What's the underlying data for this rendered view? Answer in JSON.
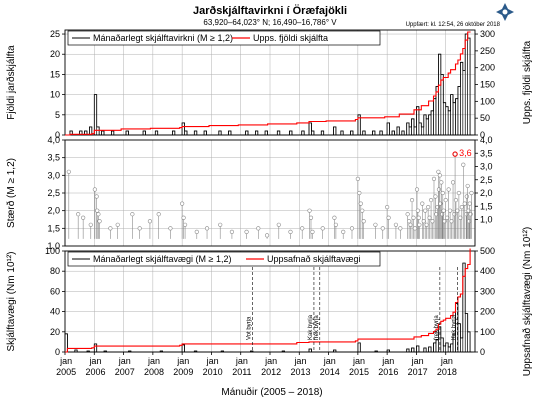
{
  "header": {
    "title": "Jarðskjálftavirkni í Öræfajökli",
    "subtitle": "63,920–64,023° N; 16,490–16,786° V",
    "updated": "Uppfært: kl. 12:54, 26 október 2018"
  },
  "colors": {
    "counts": "#000000",
    "cumulative": "#ff0000",
    "grid": "#b0b0b0",
    "stems": "#888888",
    "logo": "#2b5a8a"
  },
  "logo_icon": "snowflake-logo-icon",
  "xaxis": {
    "label": "Mánuðir (2005 – 2018)",
    "tick_top": [
      "jan",
      "jan",
      "jan",
      "jan",
      "jan",
      "jan",
      "jan",
      "jan",
      "jan",
      "jan",
      "jan",
      "jan",
      "jan",
      "jan"
    ],
    "tick_bottom": [
      "2005",
      "2006",
      "2007",
      "2008",
      "2009",
      "2010",
      "2011",
      "2012",
      "2013",
      "2014",
      "2015",
      "2016",
      "2017",
      "2018"
    ]
  },
  "chart_data": [
    {
      "type": "bar",
      "id": "monthly_counts",
      "ylabel_left": "Fjöldi jarðskjálfta",
      "ylabel_right": "Upps. fjöldi skjálfta",
      "ylim_left": [
        0,
        26
      ],
      "ylim_right": [
        0,
        312
      ],
      "yticks_left": [
        "0",
        "5",
        "10",
        "15",
        "20",
        "25"
      ],
      "yticks_right": [
        "0",
        "50",
        "100",
        "150",
        "200",
        "250",
        "300"
      ],
      "legend": {
        "monthly": "Mánaðarlegt skjálftavirkni (M ≥ 1,2)",
        "cumulative": "Upps. fjöldi skjálfta"
      },
      "monthly": [
        {
          "m": "2005-03",
          "v": 1
        },
        {
          "m": "2005-07",
          "v": 1
        },
        {
          "m": "2005-09",
          "v": 1
        },
        {
          "m": "2005-11",
          "v": 2
        },
        {
          "m": "2006-01",
          "v": 10
        },
        {
          "m": "2006-02",
          "v": 2
        },
        {
          "m": "2006-04",
          "v": 1
        },
        {
          "m": "2006-08",
          "v": 1
        },
        {
          "m": "2007-02",
          "v": 1
        },
        {
          "m": "2007-09",
          "v": 1
        },
        {
          "m": "2008-02",
          "v": 1
        },
        {
          "m": "2008-09",
          "v": 1
        },
        {
          "m": "2009-01",
          "v": 3
        },
        {
          "m": "2009-02",
          "v": 1
        },
        {
          "m": "2009-06",
          "v": 1
        },
        {
          "m": "2009-10",
          "v": 1
        },
        {
          "m": "2010-04",
          "v": 1
        },
        {
          "m": "2010-08",
          "v": 1
        },
        {
          "m": "2011-03",
          "v": 1
        },
        {
          "m": "2011-07",
          "v": 1
        },
        {
          "m": "2011-11",
          "v": 1
        },
        {
          "m": "2012-04",
          "v": 1
        },
        {
          "m": "2012-09",
          "v": 1
        },
        {
          "m": "2013-02",
          "v": 1
        },
        {
          "m": "2013-05",
          "v": 3
        },
        {
          "m": "2013-06",
          "v": 1
        },
        {
          "m": "2013-10",
          "v": 1
        },
        {
          "m": "2014-03",
          "v": 2
        },
        {
          "m": "2014-06",
          "v": 1
        },
        {
          "m": "2014-10",
          "v": 1
        },
        {
          "m": "2015-01",
          "v": 5
        },
        {
          "m": "2015-03",
          "v": 1
        },
        {
          "m": "2015-07",
          "v": 1
        },
        {
          "m": "2015-10",
          "v": 1
        },
        {
          "m": "2016-01",
          "v": 3
        },
        {
          "m": "2016-03",
          "v": 1
        },
        {
          "m": "2016-05",
          "v": 2
        },
        {
          "m": "2016-07",
          "v": 1
        },
        {
          "m": "2016-09",
          "v": 3
        },
        {
          "m": "2016-10",
          "v": 2
        },
        {
          "m": "2016-11",
          "v": 4
        },
        {
          "m": "2016-12",
          "v": 2
        },
        {
          "m": "2017-01",
          "v": 7
        },
        {
          "m": "2017-02",
          "v": 3
        },
        {
          "m": "2017-03",
          "v": 2
        },
        {
          "m": "2017-04",
          "v": 5
        },
        {
          "m": "2017-05",
          "v": 4
        },
        {
          "m": "2017-06",
          "v": 5
        },
        {
          "m": "2017-07",
          "v": 6
        },
        {
          "m": "2017-08",
          "v": 9
        },
        {
          "m": "2017-09",
          "v": 12
        },
        {
          "m": "2017-10",
          "v": 20
        },
        {
          "m": "2017-11",
          "v": 15
        },
        {
          "m": "2017-12",
          "v": 8
        },
        {
          "m": "2018-01",
          "v": 7
        },
        {
          "m": "2018-02",
          "v": 6
        },
        {
          "m": "2018-03",
          "v": 10
        },
        {
          "m": "2018-04",
          "v": 8
        },
        {
          "m": "2018-05",
          "v": 9
        },
        {
          "m": "2018-06",
          "v": 12
        },
        {
          "m": "2018-07",
          "v": 18
        },
        {
          "m": "2018-08",
          "v": 16
        },
        {
          "m": "2018-09",
          "v": 25
        },
        {
          "m": "2018-10",
          "v": 24
        }
      ],
      "cumulative": [
        [
          "2005-01",
          0
        ],
        [
          "2005-03",
          2
        ],
        [
          "2005-12",
          4
        ],
        [
          "2006-01",
          14
        ],
        [
          "2006-12",
          18
        ],
        [
          "2007-12",
          20
        ],
        [
          "2008-12",
          22
        ],
        [
          "2009-01",
          25
        ],
        [
          "2009-12",
          28
        ],
        [
          "2010-12",
          30
        ],
        [
          "2011-12",
          33
        ],
        [
          "2012-12",
          36
        ],
        [
          "2013-05",
          40
        ],
        [
          "2013-12",
          42
        ],
        [
          "2014-12",
          46
        ],
        [
          "2015-01",
          51
        ],
        [
          "2015-12",
          54
        ],
        [
          "2016-06",
          62
        ],
        [
          "2016-12",
          75
        ],
        [
          "2017-03",
          87
        ],
        [
          "2017-06",
          101
        ],
        [
          "2017-08",
          116
        ],
        [
          "2017-09",
          128
        ],
        [
          "2017-10",
          148
        ],
        [
          "2017-11",
          163
        ],
        [
          "2017-12",
          171
        ],
        [
          "2018-02",
          184
        ],
        [
          "2018-03",
          194
        ],
        [
          "2018-05",
          211
        ],
        [
          "2018-06",
          223
        ],
        [
          "2018-07",
          241
        ],
        [
          "2018-08",
          257
        ],
        [
          "2018-09",
          282
        ],
        [
          "2018-10",
          306
        ]
      ]
    },
    {
      "type": "scatter",
      "id": "magnitudes",
      "ylabel": "Stærð (M ≥ 1,2)",
      "ylim": [
        1.0,
        4.0
      ],
      "baseline": 1.2,
      "yticks_left": [
        "1,0",
        "1,5",
        "2,0",
        "2,5",
        "3,0",
        "3,5",
        "4,0"
      ],
      "yticks_right": [
        "1,0",
        "1,5",
        "2,0",
        "2,5",
        "3,0",
        "3,5",
        "4,0"
      ],
      "max_label": "3,6",
      "max_point": {
        "t": 2018.32,
        "v": 3.6
      },
      "points": [
        [
          2005.13,
          3.1
        ],
        [
          2005.45,
          1.9
        ],
        [
          2005.62,
          1.8
        ],
        [
          2005.88,
          1.6
        ],
        [
          2006.02,
          2.6
        ],
        [
          2006.08,
          2.4
        ],
        [
          2006.1,
          2.0
        ],
        [
          2006.14,
          1.9
        ],
        [
          2006.18,
          1.7
        ],
        [
          2006.55,
          1.5
        ],
        [
          2006.8,
          1.6
        ],
        [
          2007.3,
          1.9
        ],
        [
          2007.55,
          1.5
        ],
        [
          2007.9,
          1.7
        ],
        [
          2008.2,
          1.9
        ],
        [
          2008.6,
          1.5
        ],
        [
          2009.0,
          2.2
        ],
        [
          2009.05,
          1.8
        ],
        [
          2009.1,
          1.6
        ],
        [
          2009.5,
          1.4
        ],
        [
          2009.85,
          1.5
        ],
        [
          2010.3,
          1.6
        ],
        [
          2010.7,
          1.4
        ],
        [
          2011.2,
          1.4
        ],
        [
          2011.6,
          1.5
        ],
        [
          2011.9,
          1.3
        ],
        [
          2012.3,
          1.6
        ],
        [
          2012.7,
          1.4
        ],
        [
          2013.1,
          1.5
        ],
        [
          2013.35,
          2.0
        ],
        [
          2013.4,
          1.8
        ],
        [
          2013.45,
          1.4
        ],
        [
          2013.8,
          1.5
        ],
        [
          2014.2,
          1.8
        ],
        [
          2014.25,
          1.6
        ],
        [
          2014.5,
          1.4
        ],
        [
          2014.8,
          1.5
        ],
        [
          2015.0,
          2.9
        ],
        [
          2015.05,
          2.5
        ],
        [
          2015.1,
          2.2
        ],
        [
          2015.15,
          2.0
        ],
        [
          2015.2,
          1.7
        ],
        [
          2015.6,
          1.6
        ],
        [
          2015.85,
          1.5
        ],
        [
          2016.0,
          2.1
        ],
        [
          2016.05,
          1.8
        ],
        [
          2016.3,
          1.6
        ],
        [
          2016.45,
          1.5
        ],
        [
          2016.7,
          1.9
        ],
        [
          2016.75,
          1.7
        ],
        [
          2016.8,
          1.6
        ],
        [
          2016.85,
          2.3
        ],
        [
          2016.9,
          1.8
        ],
        [
          2016.95,
          1.5
        ],
        [
          2017.02,
          2.6
        ],
        [
          2017.05,
          2.0
        ],
        [
          2017.08,
          1.8
        ],
        [
          2017.1,
          1.6
        ],
        [
          2017.2,
          2.2
        ],
        [
          2017.25,
          1.7
        ],
        [
          2017.3,
          2.0
        ],
        [
          2017.35,
          1.6
        ],
        [
          2017.4,
          2.1
        ],
        [
          2017.45,
          1.8
        ],
        [
          2017.5,
          2.3
        ],
        [
          2017.55,
          1.7
        ],
        [
          2017.6,
          2.9
        ],
        [
          2017.65,
          2.4
        ],
        [
          2017.68,
          1.9
        ],
        [
          2017.72,
          2.1
        ],
        [
          2017.75,
          3.1
        ],
        [
          2017.77,
          2.6
        ],
        [
          2017.8,
          3.0
        ],
        [
          2017.82,
          2.2
        ],
        [
          2017.85,
          2.8
        ],
        [
          2017.88,
          1.9
        ],
        [
          2017.9,
          2.5
        ],
        [
          2017.93,
          2.0
        ],
        [
          2017.96,
          1.7
        ],
        [
          2018.0,
          2.3
        ],
        [
          2018.05,
          1.8
        ],
        [
          2018.1,
          2.6
        ],
        [
          2018.15,
          2.0
        ],
        [
          2018.2,
          1.7
        ],
        [
          2018.25,
          2.8
        ],
        [
          2018.3,
          1.9
        ],
        [
          2018.32,
          3.6
        ],
        [
          2018.35,
          2.3
        ],
        [
          2018.4,
          2.0
        ],
        [
          2018.45,
          2.5
        ],
        [
          2018.5,
          1.8
        ],
        [
          2018.55,
          2.1
        ],
        [
          2018.6,
          3.3
        ],
        [
          2018.65,
          2.2
        ],
        [
          2018.7,
          1.9
        ],
        [
          2018.72,
          2.4
        ],
        [
          2018.75,
          2.7
        ],
        [
          2018.78,
          2.0
        ],
        [
          2018.8,
          1.7
        ],
        [
          2018.82,
          2.2
        ],
        [
          2018.85,
          1.9
        ],
        [
          2018.88,
          2.5
        ]
      ]
    },
    {
      "type": "bar",
      "id": "moment",
      "ylabel_left": "Skjálftavægi (Nm 10¹²)",
      "ylabel_right": "Uppsafnað skjálftavægi (Nm 10¹²)",
      "ylim_left": [
        0,
        100
      ],
      "ylim_right": [
        0,
        500
      ],
      "yticks_left": [
        "0",
        "20",
        "40",
        "60",
        "80",
        "100"
      ],
      "yticks_right": [
        "0",
        "100",
        "200",
        "300",
        "400",
        "500"
      ],
      "legend": {
        "monthly": "Mánaðarlegt skjálftavægi (M ≥ 1,2)",
        "cumulative": "Uppsafnað skjálftavægi"
      },
      "annotations": [
        {
          "t": 2011.4,
          "label": "Vot byrja"
        },
        {
          "t": 2013.5,
          "label": "Kak byrja"
        },
        {
          "t": 2013.7,
          "label": "frek byrja"
        },
        {
          "t": 2017.8,
          "label": "frek byrja"
        },
        {
          "t": 2018.4,
          "label": "Kak byrja"
        }
      ],
      "monthly": [
        {
          "m": "2005-01",
          "v": 18
        },
        {
          "m": "2005-05",
          "v": 2
        },
        {
          "m": "2005-10",
          "v": 1
        },
        {
          "m": "2006-01",
          "v": 8
        },
        {
          "m": "2006-05",
          "v": 1
        },
        {
          "m": "2007-03",
          "v": 1
        },
        {
          "m": "2008-04",
          "v": 1
        },
        {
          "m": "2009-01",
          "v": 7
        },
        {
          "m": "2009-06",
          "v": 1
        },
        {
          "m": "2010-05",
          "v": 1
        },
        {
          "m": "2011-05",
          "v": 1
        },
        {
          "m": "2012-06",
          "v": 1
        },
        {
          "m": "2013-05",
          "v": 3
        },
        {
          "m": "2014-03",
          "v": 2
        },
        {
          "m": "2015-01",
          "v": 9
        },
        {
          "m": "2015-08",
          "v": 1
        },
        {
          "m": "2016-01",
          "v": 2
        },
        {
          "m": "2016-09",
          "v": 3
        },
        {
          "m": "2016-11",
          "v": 4
        },
        {
          "m": "2017-01",
          "v": 6
        },
        {
          "m": "2017-04",
          "v": 4
        },
        {
          "m": "2017-06",
          "v": 5
        },
        {
          "m": "2017-08",
          "v": 9
        },
        {
          "m": "2017-09",
          "v": 12
        },
        {
          "m": "2017-10",
          "v": 25
        },
        {
          "m": "2017-11",
          "v": 14
        },
        {
          "m": "2017-12",
          "v": 6
        },
        {
          "m": "2018-01",
          "v": 9
        },
        {
          "m": "2018-02",
          "v": 5
        },
        {
          "m": "2018-03",
          "v": 8
        },
        {
          "m": "2018-04",
          "v": 17
        },
        {
          "m": "2018-05",
          "v": 48
        },
        {
          "m": "2018-06",
          "v": 28
        },
        {
          "m": "2018-07",
          "v": 14
        },
        {
          "m": "2018-08",
          "v": 88
        },
        {
          "m": "2018-09",
          "v": 38
        },
        {
          "m": "2018-10",
          "v": 20
        }
      ],
      "cumulative": [
        [
          "2005-01",
          0
        ],
        [
          "2005-02",
          18
        ],
        [
          "2005-12",
          21
        ],
        [
          "2006-01",
          29
        ],
        [
          "2008-12",
          33
        ],
        [
          "2009-01",
          40
        ],
        [
          "2012-12",
          47
        ],
        [
          "2013-05",
          50
        ],
        [
          "2014-12",
          55
        ],
        [
          "2015-01",
          64
        ],
        [
          "2016-12",
          75
        ],
        [
          "2017-03",
          81
        ],
        [
          "2017-06",
          92
        ],
        [
          "2017-08",
          101
        ],
        [
          "2017-09",
          113
        ],
        [
          "2017-10",
          138
        ],
        [
          "2017-11",
          152
        ],
        [
          "2017-12",
          158
        ],
        [
          "2018-01",
          167
        ],
        [
          "2018-03",
          180
        ],
        [
          "2018-04",
          197
        ],
        [
          "2018-05",
          245
        ],
        [
          "2018-06",
          273
        ],
        [
          "2018-07",
          287
        ],
        [
          "2018-08",
          375
        ],
        [
          "2018-09",
          413
        ],
        [
          "2018-10",
          433
        ],
        [
          "2018-11",
          510
        ]
      ]
    }
  ]
}
